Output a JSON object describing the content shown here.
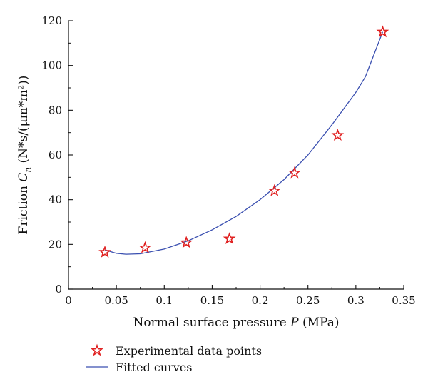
{
  "chart_data": {
    "type": "scatter",
    "xlabel": "Normal surface pressure P (MPa)",
    "xlabel_parts": {
      "before": "Normal surface pressure ",
      "italic": "P",
      "after": " (MPa)"
    },
    "ylabel": "Friction Cn (N*s/(μm*m²))",
    "ylabel_parts": {
      "before": "Friction ",
      "italic": "C",
      "sub": "n",
      "after": " (N*s/(μm*m²))"
    },
    "xlim": [
      0,
      0.35
    ],
    "ylim": [
      0,
      120
    ],
    "x_ticks": [
      "0",
      "0.05",
      "0.1",
      "0.15",
      "0.2",
      "0.25",
      "0.3",
      "0.35"
    ],
    "y_ticks": [
      "0",
      "20",
      "40",
      "60",
      "80",
      "100",
      "120"
    ],
    "grid": false,
    "legend_position": "bottom",
    "series": [
      {
        "name": "Experimental data points",
        "kind": "scatter",
        "marker": "star",
        "color": "#e02020",
        "x": [
          0.038,
          0.08,
          0.123,
          0.168,
          0.215,
          0.236,
          0.281,
          0.328
        ],
        "y": [
          16.5,
          18.5,
          20.8,
          22.5,
          44.0,
          52.0,
          68.8,
          115.0
        ]
      },
      {
        "name": "Fitted curves",
        "kind": "line",
        "color": "#3a4fb0",
        "x": [
          0.038,
          0.05,
          0.06,
          0.075,
          0.1,
          0.125,
          0.15,
          0.175,
          0.2,
          0.225,
          0.25,
          0.275,
          0.3,
          0.31,
          0.328
        ],
        "y": [
          17.5,
          16.0,
          15.6,
          15.8,
          17.9,
          21.6,
          26.5,
          32.5,
          40.0,
          49.0,
          60.0,
          73.5,
          88.0,
          95.0,
          115.0
        ]
      }
    ]
  }
}
